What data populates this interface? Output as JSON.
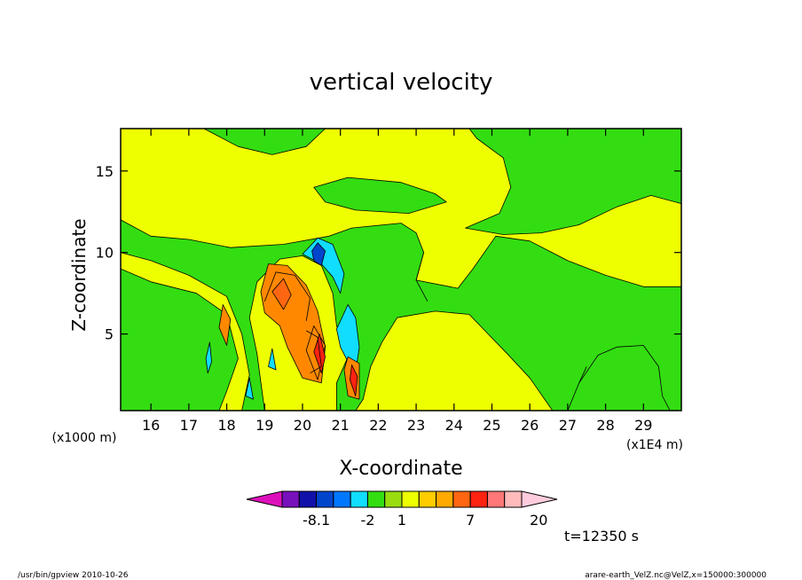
{
  "chart_data": {
    "type": "contour",
    "title": "vertical velocity",
    "xlabel": "X-coordinate",
    "ylabel": "Z-coordinate",
    "x_unit_label": "(x1E4 m)",
    "y_unit_label": "(x1000 m)",
    "xlim": [
      15.2,
      30.0
    ],
    "ylim": [
      0.3,
      17.6
    ],
    "x_ticks": [
      16,
      17,
      18,
      19,
      20,
      21,
      22,
      23,
      24,
      25,
      26,
      27,
      28,
      29
    ],
    "y_ticks": [
      5,
      10,
      15
    ],
    "background_level_color": "#eeff00",
    "regions": [
      {
        "name": "background",
        "color": "#eeff00",
        "points": [
          [
            15.2,
            0.3
          ],
          [
            30.0,
            0.3
          ],
          [
            30.0,
            17.6
          ],
          [
            15.2,
            17.6
          ]
        ]
      },
      {
        "name": "green-left",
        "color": "#33dd11",
        "points": [
          [
            15.2,
            0.3
          ],
          [
            17.8,
            0.3
          ],
          [
            18.0,
            1.5
          ],
          [
            18.3,
            3.5
          ],
          [
            18.0,
            6.2
          ],
          [
            17.2,
            7.5
          ],
          [
            16.0,
            8.2
          ],
          [
            15.2,
            9.0
          ]
        ]
      },
      {
        "name": "green-left-mid",
        "color": "#33dd11",
        "points": [
          [
            15.2,
            12.0
          ],
          [
            16.0,
            11.0
          ],
          [
            17.0,
            10.8
          ],
          [
            18.1,
            10.3
          ],
          [
            19.5,
            10.5
          ],
          [
            20.7,
            11.0
          ],
          [
            21.3,
            11.5
          ],
          [
            22.6,
            11.8
          ],
          [
            23.0,
            11.2
          ],
          [
            23.2,
            10.0
          ],
          [
            23.0,
            8.3
          ],
          [
            24.1,
            7.8
          ],
          [
            24.5,
            9.0
          ],
          [
            25.1,
            11.0
          ],
          [
            26.0,
            10.7
          ],
          [
            27.0,
            9.5
          ],
          [
            28.0,
            8.6
          ],
          [
            29.0,
            7.9
          ],
          [
            30.0,
            7.9
          ],
          [
            30.0,
            0.3
          ],
          [
            26.6,
            0.3
          ],
          [
            26.0,
            2.3
          ],
          [
            25.4,
            3.8
          ],
          [
            24.9,
            5.0
          ],
          [
            24.4,
            6.2
          ],
          [
            23.5,
            6.4
          ],
          [
            22.5,
            6.0
          ],
          [
            22.1,
            4.5
          ],
          [
            21.8,
            3.0
          ],
          [
            21.6,
            1.0
          ],
          [
            21.4,
            0.3
          ],
          [
            20.9,
            0.3
          ],
          [
            20.9,
            2.0
          ],
          [
            21.2,
            3.6
          ],
          [
            20.9,
            5.5
          ],
          [
            20.8,
            7.5
          ],
          [
            20.5,
            9.2
          ],
          [
            20.0,
            9.8
          ],
          [
            19.4,
            9.6
          ],
          [
            18.8,
            8.2
          ],
          [
            18.6,
            6.0
          ],
          [
            18.8,
            3.8
          ],
          [
            19.0,
            0.3
          ],
          [
            18.4,
            0.3
          ],
          [
            18.6,
            2.5
          ],
          [
            18.4,
            5.0
          ],
          [
            18.0,
            7.3
          ],
          [
            17.0,
            8.6
          ],
          [
            16.0,
            9.5
          ],
          [
            15.2,
            10.0
          ]
        ]
      },
      {
        "name": "green-top-left",
        "color": "#33dd11",
        "points": [
          [
            17.4,
            17.6
          ],
          [
            18.3,
            16.5
          ],
          [
            19.2,
            16.0
          ],
          [
            20.1,
            16.5
          ],
          [
            20.6,
            17.6
          ]
        ]
      },
      {
        "name": "green-top-mid",
        "color": "#33dd11",
        "points": [
          [
            20.3,
            14.0
          ],
          [
            21.2,
            14.6
          ],
          [
            22.6,
            14.3
          ],
          [
            23.5,
            13.6
          ],
          [
            23.8,
            13.1
          ],
          [
            22.8,
            12.4
          ],
          [
            21.4,
            12.6
          ],
          [
            20.6,
            13.1
          ]
        ]
      },
      {
        "name": "green-right-upper",
        "color": "#33dd11",
        "points": [
          [
            24.3,
            11.5
          ],
          [
            25.2,
            12.4
          ],
          [
            25.5,
            14.0
          ],
          [
            25.3,
            15.8
          ],
          [
            24.6,
            17.0
          ],
          [
            24.4,
            17.6
          ],
          [
            30.0,
            17.6
          ],
          [
            30.0,
            13.0
          ],
          [
            29.2,
            13.5
          ],
          [
            28.3,
            12.8
          ],
          [
            27.3,
            11.7
          ],
          [
            26.3,
            11.2
          ],
          [
            25.3,
            11.1
          ]
        ]
      },
      {
        "name": "green-right-lower",
        "color": "#33dd11",
        "points": [
          [
            27.0,
            0.3
          ],
          [
            27.3,
            2.0
          ],
          [
            27.8,
            3.7
          ],
          [
            28.3,
            4.2
          ],
          [
            29.0,
            4.3
          ],
          [
            29.4,
            3.0
          ],
          [
            29.5,
            1.2
          ],
          [
            29.7,
            0.3
          ]
        ]
      },
      {
        "name": "cyan-top",
        "color": "#11ddff",
        "points": [
          [
            20.0,
            9.9
          ],
          [
            20.4,
            10.9
          ],
          [
            20.8,
            10.5
          ],
          [
            21.1,
            8.7
          ],
          [
            21.0,
            7.5
          ],
          [
            20.8,
            8.5
          ],
          [
            20.5,
            9.3
          ]
        ]
      },
      {
        "name": "cyan-column",
        "color": "#11ddff",
        "points": [
          [
            20.9,
            5.3
          ],
          [
            21.2,
            6.8
          ],
          [
            21.4,
            6.0
          ],
          [
            21.5,
            4.2
          ],
          [
            21.4,
            2.6
          ],
          [
            21.2,
            3.3
          ],
          [
            21.0,
            4.2
          ]
        ]
      },
      {
        "name": "blue-top",
        "color": "#0044cc",
        "points": [
          [
            20.25,
            10.1
          ],
          [
            20.4,
            10.6
          ],
          [
            20.6,
            10.1
          ],
          [
            20.5,
            9.2
          ],
          [
            20.3,
            9.5
          ]
        ]
      },
      {
        "name": "orange-main",
        "color": "#ff8800",
        "points": [
          [
            18.9,
            7.6
          ],
          [
            19.1,
            9.3
          ],
          [
            19.6,
            9.2
          ],
          [
            20.1,
            8.0
          ],
          [
            20.4,
            6.4
          ],
          [
            20.6,
            4.2
          ],
          [
            20.5,
            2.0
          ],
          [
            20.0,
            2.3
          ],
          [
            19.6,
            4.2
          ],
          [
            19.4,
            5.5
          ],
          [
            19.0,
            6.3
          ]
        ]
      },
      {
        "name": "orange-inner",
        "color": "#ff6611",
        "points": [
          [
            19.2,
            7.6
          ],
          [
            19.5,
            8.4
          ],
          [
            19.7,
            7.4
          ],
          [
            19.5,
            6.5
          ]
        ]
      },
      {
        "name": "orange-lower",
        "color": "#ff8800",
        "points": [
          [
            20.1,
            4.0
          ],
          [
            20.3,
            5.5
          ],
          [
            20.6,
            4.3
          ],
          [
            20.4,
            2.2
          ]
        ]
      },
      {
        "name": "orange-blob-b",
        "color": "#ff8800",
        "points": [
          [
            21.1,
            2.8
          ],
          [
            21.2,
            3.6
          ],
          [
            21.5,
            3.2
          ],
          [
            21.5,
            1.0
          ],
          [
            21.2,
            1.2
          ]
        ]
      },
      {
        "name": "orange-blob-c",
        "color": "#ff8800",
        "points": [
          [
            17.8,
            5.4
          ],
          [
            17.9,
            6.8
          ],
          [
            18.1,
            5.9
          ],
          [
            18.0,
            4.3
          ]
        ]
      },
      {
        "name": "red-main",
        "color": "#ff2211",
        "points": [
          [
            20.3,
            3.9
          ],
          [
            20.45,
            5.0
          ],
          [
            20.6,
            3.6
          ],
          [
            20.5,
            2.6
          ]
        ]
      },
      {
        "name": "red-b",
        "color": "#ff2211",
        "points": [
          [
            21.25,
            2.2
          ],
          [
            21.3,
            3.1
          ],
          [
            21.45,
            2.4
          ],
          [
            21.4,
            1.2
          ]
        ]
      },
      {
        "name": "cyan-left",
        "color": "#11ddff",
        "points": [
          [
            17.45,
            3.5
          ],
          [
            17.55,
            4.5
          ],
          [
            17.6,
            3.3
          ],
          [
            17.5,
            2.6
          ]
        ]
      },
      {
        "name": "cyan-left2",
        "color": "#11ddff",
        "points": [
          [
            18.5,
            1.2
          ],
          [
            18.6,
            2.3
          ],
          [
            18.7,
            1.0
          ]
        ]
      },
      {
        "name": "cyan-mid",
        "color": "#11ddff",
        "points": [
          [
            19.1,
            3.0
          ],
          [
            19.2,
            4.1
          ],
          [
            19.3,
            2.8
          ]
        ]
      }
    ],
    "contour_lines": [
      [
        [
          19.0,
          7.0
        ],
        [
          19.3,
          8.8
        ],
        [
          19.8,
          8.6
        ],
        [
          20.2,
          7.2
        ],
        [
          20.1,
          5.8
        ]
      ],
      [
        [
          20.1,
          5.2
        ],
        [
          20.4,
          4.8
        ],
        [
          20.5,
          3.0
        ],
        [
          20.2,
          2.6
        ]
      ],
      [
        [
          23.2,
          10.0
        ],
        [
          23.0,
          8.3
        ],
        [
          23.3,
          7.0
        ]
      ],
      [
        [
          27.3,
          2.0
        ],
        [
          27.5,
          3.0
        ]
      ]
    ],
    "colorbar": {
      "colors": [
        "#dd11bb",
        "#7711bb",
        "#1111aa",
        "#0044cc",
        "#0077ff",
        "#11ddff",
        "#33dd11",
        "#99dd11",
        "#eeff00",
        "#ffcc00",
        "#ffaa00",
        "#ff6611",
        "#ff2211",
        "#ff7777",
        "#ffbbbb",
        "#ffccdd"
      ],
      "labels": [
        "-8.1",
        "-2",
        "1",
        "7",
        "20"
      ],
      "label_after_box": [
        1,
        4,
        6,
        10,
        14
      ]
    },
    "time_label": "t=12350 s"
  },
  "footer": {
    "left": "/usr/bin/gpview   2010-10-26",
    "right": "arare-earth_VelZ.nc@VelZ,x=150000:300000"
  }
}
